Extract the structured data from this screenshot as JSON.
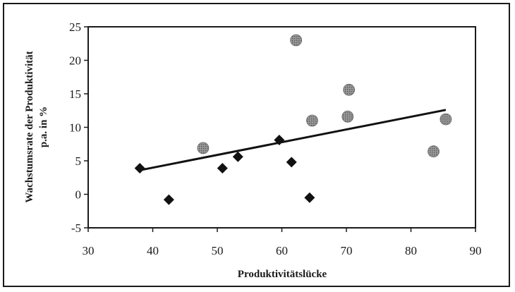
{
  "chart_data": {
    "type": "scatter",
    "xlabel": "Produktivitätslücke",
    "ylabel_line1": "Wachstumsrate der Produktivität",
    "ylabel_line2": "p.a. in %",
    "xlim": [
      30,
      90
    ],
    "ylim": [
      -5,
      25
    ],
    "x_ticks": [
      30,
      40,
      50,
      60,
      70,
      80,
      90
    ],
    "y_ticks": [
      -5,
      0,
      5,
      10,
      15,
      20,
      25
    ],
    "grid": false,
    "legend": "none",
    "series": [
      {
        "marker": "diamond",
        "color": "#111111",
        "points": [
          {
            "x": 38.0,
            "y": 3.9
          },
          {
            "x": 42.5,
            "y": -0.8
          },
          {
            "x": 50.8,
            "y": 3.9
          },
          {
            "x": 53.2,
            "y": 5.6
          },
          {
            "x": 59.6,
            "y": 8.1
          },
          {
            "x": 61.5,
            "y": 4.8
          },
          {
            "x": 64.3,
            "y": -0.5
          }
        ]
      },
      {
        "marker": "circle",
        "color": "#8a8a8a",
        "points": [
          {
            "x": 47.8,
            "y": 6.9
          },
          {
            "x": 62.2,
            "y": 23.0
          },
          {
            "x": 64.7,
            "y": 11.0
          },
          {
            "x": 70.2,
            "y": 11.6
          },
          {
            "x": 70.4,
            "y": 15.6
          },
          {
            "x": 83.5,
            "y": 6.4
          },
          {
            "x": 85.4,
            "y": 11.2
          }
        ]
      }
    ],
    "trendline": {
      "x": [
        38,
        85.4
      ],
      "y": [
        3.6,
        12.6
      ]
    }
  }
}
